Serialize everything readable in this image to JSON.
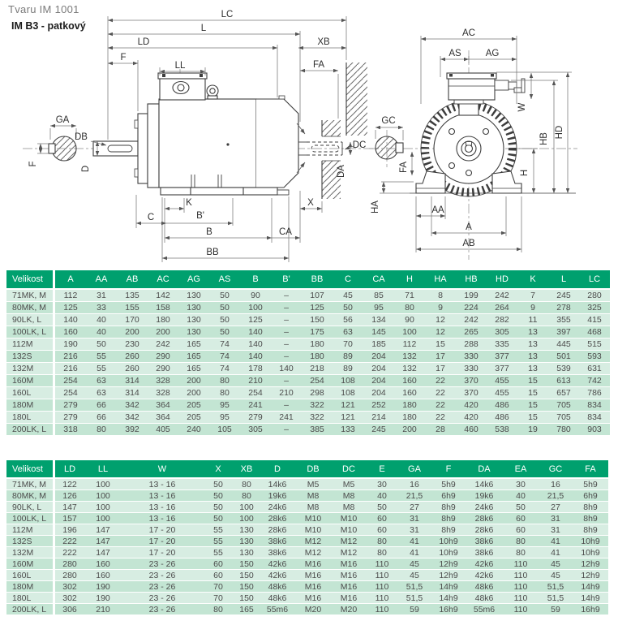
{
  "page": {
    "title_line1": "Tvaru IM 1001",
    "title_line2": "IM B3 - patkový"
  },
  "colors": {
    "header_green": "#00a06e",
    "row_light": "#d7ede2",
    "row_dark": "#c3e5d3",
    "header_text": "#ffffff",
    "body_text": "#4c4c4c"
  },
  "drawing": {
    "side_view": {
      "description": "motor side view with dimension lines",
      "labels": {
        "lc": "LC",
        "l": "L",
        "ld": "LD",
        "f_top": "F",
        "ll": "LL",
        "xb": "XB",
        "fa": "FA",
        "ga": "GA",
        "f_section": "F",
        "db": "DB",
        "d": "D",
        "dc": "DC",
        "da": "DA",
        "k": "K",
        "c": "C",
        "b_prime": "B'",
        "b": "B",
        "ca": "CA",
        "bb": "BB",
        "x": "X"
      }
    },
    "end_view": {
      "description": "motor end view with dimension lines",
      "labels": {
        "ac": "AC",
        "as": "AS",
        "ag": "AG",
        "w": "W",
        "gc": "GC",
        "fa": "FA",
        "ha": "HA",
        "aa": "AA",
        "a": "A",
        "ab": "AB",
        "h": "H",
        "hb": "HB",
        "hd": "HD"
      }
    }
  },
  "table1": {
    "columns": [
      "Velikost",
      "A",
      "AA",
      "AB",
      "AC",
      "AG",
      "AS",
      "B",
      "B'",
      "BB",
      "C",
      "CA",
      "H",
      "HA",
      "HB",
      "HD",
      "K",
      "L",
      "LC"
    ],
    "rows": [
      [
        "71MK, M",
        "112",
        "31",
        "135",
        "142",
        "130",
        "50",
        "90",
        "–",
        "107",
        "45",
        "85",
        "71",
        "8",
        "199",
        "242",
        "7",
        "245",
        "280"
      ],
      [
        "80MK, M",
        "125",
        "33",
        "155",
        "158",
        "130",
        "50",
        "100",
        "–",
        "125",
        "50",
        "95",
        "80",
        "9",
        "224",
        "264",
        "9",
        "278",
        "325"
      ],
      [
        "90LK, L",
        "140",
        "40",
        "170",
        "180",
        "130",
        "50",
        "125",
        "–",
        "150",
        "56",
        "134",
        "90",
        "12",
        "242",
        "282",
        "11",
        "355",
        "415"
      ],
      [
        "100LK, L",
        "160",
        "40",
        "200",
        "200",
        "130",
        "50",
        "140",
        "–",
        "175",
        "63",
        "145",
        "100",
        "12",
        "265",
        "305",
        "13",
        "397",
        "468"
      ],
      [
        "112M",
        "190",
        "50",
        "230",
        "242",
        "165",
        "74",
        "140",
        "–",
        "180",
        "70",
        "185",
        "112",
        "15",
        "288",
        "335",
        "13",
        "445",
        "515"
      ],
      [
        "132S",
        "216",
        "55",
        "260",
        "290",
        "165",
        "74",
        "140",
        "–",
        "180",
        "89",
        "204",
        "132",
        "17",
        "330",
        "377",
        "13",
        "501",
        "593"
      ],
      [
        "132M",
        "216",
        "55",
        "260",
        "290",
        "165",
        "74",
        "178",
        "140",
        "218",
        "89",
        "204",
        "132",
        "17",
        "330",
        "377",
        "13",
        "539",
        "631"
      ],
      [
        "160M",
        "254",
        "63",
        "314",
        "328",
        "200",
        "80",
        "210",
        "–",
        "254",
        "108",
        "204",
        "160",
        "22",
        "370",
        "455",
        "15",
        "613",
        "742"
      ],
      [
        "160L",
        "254",
        "63",
        "314",
        "328",
        "200",
        "80",
        "254",
        "210",
        "298",
        "108",
        "204",
        "160",
        "22",
        "370",
        "455",
        "15",
        "657",
        "786"
      ],
      [
        "180M",
        "279",
        "66",
        "342",
        "364",
        "205",
        "95",
        "241",
        "–",
        "322",
        "121",
        "252",
        "180",
        "22",
        "420",
        "486",
        "15",
        "705",
        "834"
      ],
      [
        "180L",
        "279",
        "66",
        "342",
        "364",
        "205",
        "95",
        "279",
        "241",
        "322",
        "121",
        "214",
        "180",
        "22",
        "420",
        "486",
        "15",
        "705",
        "834"
      ],
      [
        "200LK, L",
        "318",
        "80",
        "392",
        "405",
        "240",
        "105",
        "305",
        "–",
        "385",
        "133",
        "245",
        "200",
        "28",
        "460",
        "538",
        "19",
        "780",
        "903"
      ]
    ]
  },
  "table2": {
    "columns": [
      "Velikost",
      "LD",
      "LL",
      "W",
      "X",
      "XB",
      "D",
      "DB",
      "DC",
      "E",
      "GA",
      "F",
      "DA",
      "EA",
      "GC",
      "FA"
    ],
    "rows": [
      [
        "71MK, M",
        "122",
        "100",
        "13 - 16",
        "50",
        "80",
        "14k6",
        "M5",
        "M5",
        "30",
        "16",
        "5h9",
        "14k6",
        "30",
        "16",
        "5h9"
      ],
      [
        "80MK, M",
        "126",
        "100",
        "13 - 16",
        "50",
        "80",
        "19k6",
        "M8",
        "M8",
        "40",
        "21,5",
        "6h9",
        "19k6",
        "40",
        "21,5",
        "6h9"
      ],
      [
        "90LK, L",
        "147",
        "100",
        "13 - 16",
        "50",
        "100",
        "24k6",
        "M8",
        "M8",
        "50",
        "27",
        "8h9",
        "24k6",
        "50",
        "27",
        "8h9"
      ],
      [
        "100LK, L",
        "157",
        "100",
        "13 - 16",
        "50",
        "100",
        "28k6",
        "M10",
        "M10",
        "60",
        "31",
        "8h9",
        "28k6",
        "60",
        "31",
        "8h9"
      ],
      [
        "112M",
        "196",
        "147",
        "17 - 20",
        "55",
        "130",
        "28k6",
        "M10",
        "M10",
        "60",
        "31",
        "8h9",
        "28k6",
        "60",
        "31",
        "8h9"
      ],
      [
        "132S",
        "222",
        "147",
        "17 - 20",
        "55",
        "130",
        "38k6",
        "M12",
        "M12",
        "80",
        "41",
        "10h9",
        "38k6",
        "80",
        "41",
        "10h9"
      ],
      [
        "132M",
        "222",
        "147",
        "17 - 20",
        "55",
        "130",
        "38k6",
        "M12",
        "M12",
        "80",
        "41",
        "10h9",
        "38k6",
        "80",
        "41",
        "10h9"
      ],
      [
        "160M",
        "280",
        "160",
        "23 - 26",
        "60",
        "150",
        "42k6",
        "M16",
        "M16",
        "110",
        "45",
        "12h9",
        "42k6",
        "110",
        "45",
        "12h9"
      ],
      [
        "160L",
        "280",
        "160",
        "23 - 26",
        "60",
        "150",
        "42k6",
        "M16",
        "M16",
        "110",
        "45",
        "12h9",
        "42k6",
        "110",
        "45",
        "12h9"
      ],
      [
        "180M",
        "302",
        "190",
        "23 - 26",
        "70",
        "150",
        "48k6",
        "M16",
        "M16",
        "110",
        "51,5",
        "14h9",
        "48k6",
        "110",
        "51,5",
        "14h9"
      ],
      [
        "180L",
        "302",
        "190",
        "23 - 26",
        "70",
        "150",
        "48k6",
        "M16",
        "M16",
        "110",
        "51,5",
        "14h9",
        "48k6",
        "110",
        "51,5",
        "14h9"
      ],
      [
        "200LK, L",
        "306",
        "210",
        "23 - 26",
        "80",
        "165",
        "55m6",
        "M20",
        "M20",
        "110",
        "59",
        "16h9",
        "55m6",
        "110",
        "59",
        "16h9"
      ]
    ]
  }
}
